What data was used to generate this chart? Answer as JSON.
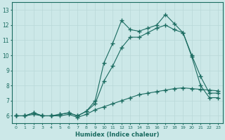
{
  "title": "",
  "xlabel": "Humidex (Indice chaleur)",
  "ylabel": "",
  "xlim": [
    -0.5,
    23.5
  ],
  "ylim": [
    5.5,
    13.5
  ],
  "xticks": [
    0,
    1,
    2,
    3,
    4,
    5,
    6,
    7,
    8,
    9,
    10,
    11,
    12,
    13,
    14,
    15,
    16,
    17,
    18,
    19,
    20,
    21,
    22,
    23
  ],
  "yticks": [
    6,
    7,
    8,
    9,
    10,
    11,
    12,
    13
  ],
  "bg_color": "#cce8e8",
  "line_color": "#1a6b60",
  "grid_color": "#b8d8d8",
  "line1_x": [
    0,
    1,
    2,
    3,
    4,
    5,
    6,
    7,
    8,
    9,
    10,
    11,
    12,
    13,
    14,
    15,
    16,
    17,
    18,
    19,
    20,
    21,
    22,
    23
  ],
  "line1_y": [
    6.0,
    6.0,
    6.2,
    6.0,
    6.0,
    6.1,
    6.2,
    6.0,
    6.3,
    7.0,
    9.5,
    10.8,
    12.3,
    11.7,
    11.6,
    11.8,
    12.0,
    12.7,
    12.1,
    11.5,
    10.0,
    8.6,
    7.5,
    7.5
  ],
  "line2_x": [
    0,
    1,
    2,
    3,
    4,
    5,
    6,
    7,
    8,
    9,
    10,
    11,
    12,
    13,
    14,
    15,
    16,
    17,
    18,
    19,
    20,
    21,
    22,
    23
  ],
  "line2_y": [
    6.0,
    6.0,
    6.2,
    6.0,
    6.0,
    6.1,
    6.2,
    6.0,
    6.3,
    6.8,
    8.3,
    9.3,
    10.5,
    11.2,
    11.2,
    11.5,
    11.8,
    12.0,
    11.7,
    11.5,
    9.9,
    8.0,
    7.2,
    7.2
  ],
  "line3_x": [
    0,
    1,
    2,
    3,
    4,
    5,
    6,
    7,
    8,
    9,
    10,
    11,
    12,
    13,
    14,
    15,
    16,
    17,
    18,
    19,
    20,
    21,
    22,
    23
  ],
  "line3_y": [
    6.0,
    6.0,
    6.1,
    6.0,
    6.0,
    6.0,
    6.1,
    5.9,
    6.1,
    6.4,
    6.6,
    6.8,
    7.0,
    7.2,
    7.4,
    7.5,
    7.6,
    7.7,
    7.8,
    7.85,
    7.8,
    7.75,
    7.7,
    7.65
  ]
}
